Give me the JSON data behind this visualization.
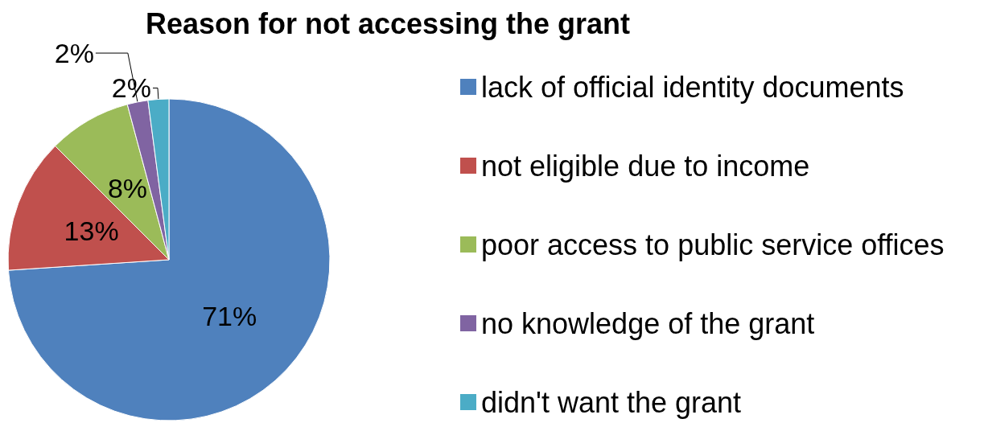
{
  "chart_data": {
    "type": "pie",
    "title": "Reason for not accessing the grant",
    "categories": [
      "lack of official identity documents",
      "not eligible due to income",
      "poor access to public service offices",
      "no knowledge of the grant",
      "didn't want the grant"
    ],
    "values": [
      71,
      13,
      8,
      2,
      2
    ],
    "value_labels": [
      "71%",
      "13%",
      "8%",
      "2%",
      "2%"
    ],
    "colors": [
      "#4f81bd",
      "#c0504d",
      "#9bbb59",
      "#8064a2",
      "#4bacc6"
    ],
    "legend": "right"
  }
}
